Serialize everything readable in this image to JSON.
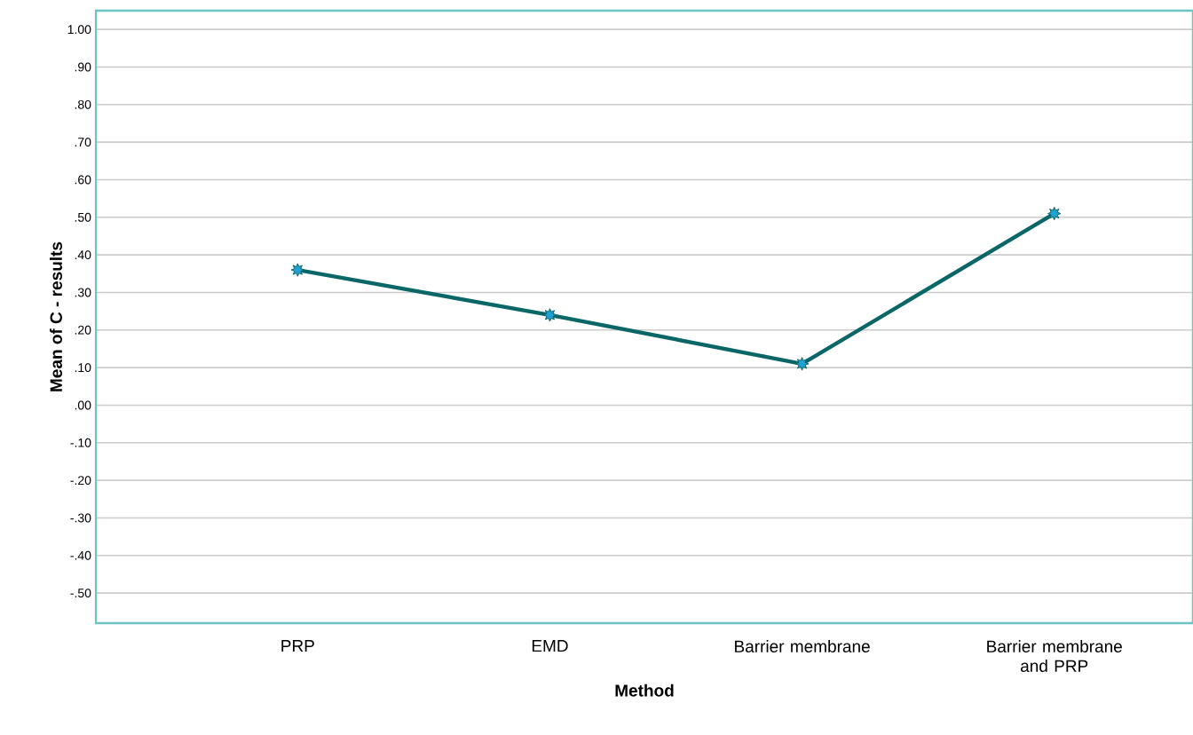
{
  "chart_data": {
    "type": "line",
    "xlabel": "Method",
    "ylabel": "Mean of C - results",
    "categories": [
      "PRP",
      "EMD",
      "Barrier membrane",
      "Barrier membrane\nand PRP"
    ],
    "series": [
      {
        "color": "#0b6767",
        "values": [
          0.36,
          0.24,
          0.11,
          0.51
        ]
      }
    ],
    "ylim": [
      -0.58,
      1.05
    ],
    "yticks": [
      {
        "value": 1.0,
        "label": "1.00"
      },
      {
        "value": 0.9,
        "label": ".90"
      },
      {
        "value": 0.8,
        "label": ".80"
      },
      {
        "value": 0.7,
        "label": ".70"
      },
      {
        "value": 0.6,
        "label": ".60"
      },
      {
        "value": 0.5,
        "label": ".50"
      },
      {
        "value": 0.4,
        "label": ".40"
      },
      {
        "value": 0.3,
        "label": ".30"
      },
      {
        "value": 0.2,
        "label": ".20"
      },
      {
        "value": 0.1,
        "label": ".10"
      },
      {
        "value": 0.0,
        "label": ".00"
      },
      {
        "value": -0.1,
        "label": "-.10"
      },
      {
        "value": -0.2,
        "label": "-.20"
      },
      {
        "value": -0.3,
        "label": "-.30"
      },
      {
        "value": -0.4,
        "label": "-.40"
      },
      {
        "value": -0.5,
        "label": "-.50"
      }
    ],
    "grid": "y",
    "marker": "star",
    "line_style": "solid"
  }
}
